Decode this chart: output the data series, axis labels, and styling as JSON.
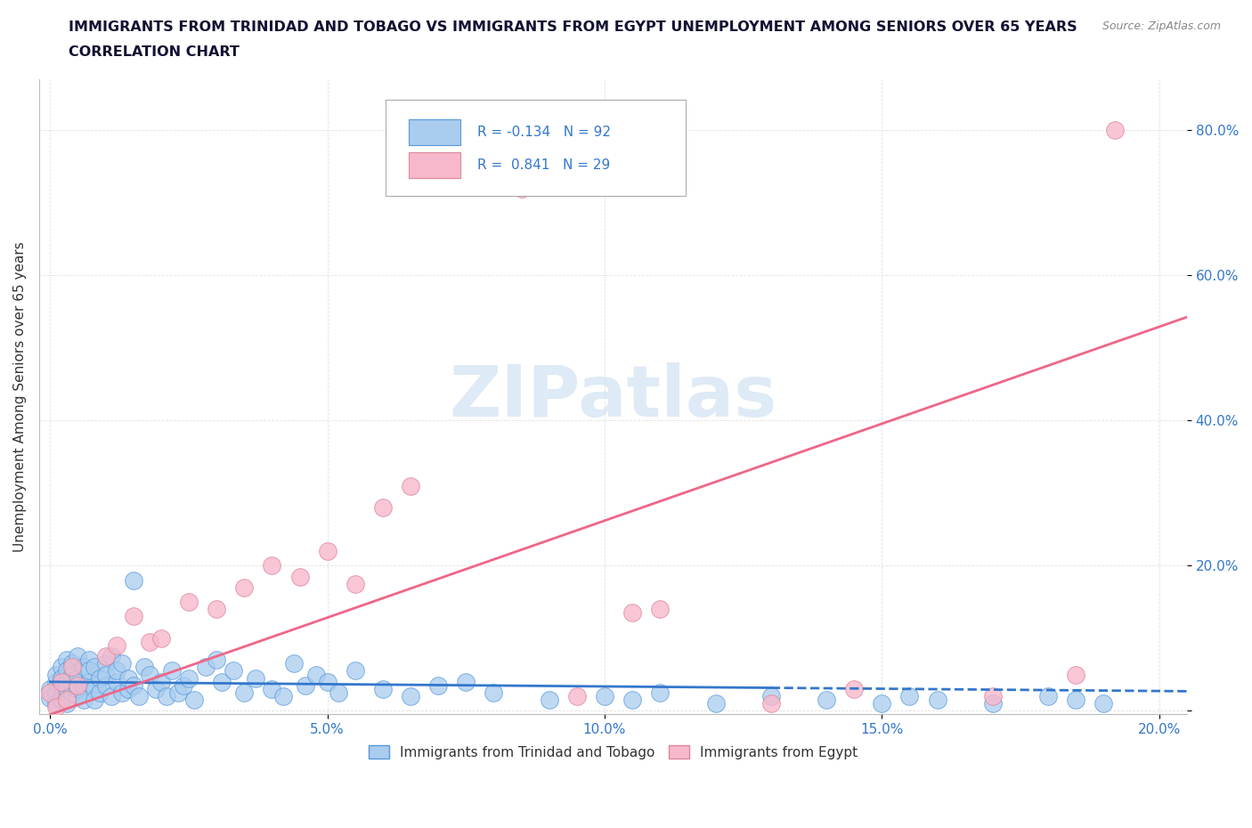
{
  "title_line1": "IMMIGRANTS FROM TRINIDAD AND TOBAGO VS IMMIGRANTS FROM EGYPT UNEMPLOYMENT AMONG SENIORS OVER 65 YEARS",
  "title_line2": "CORRELATION CHART",
  "source_text": "Source: ZipAtlas.com",
  "ylabel": "Unemployment Among Seniors over 65 years",
  "xlim": [
    -0.002,
    0.205
  ],
  "ylim": [
    -0.005,
    0.87
  ],
  "xticks": [
    0.0,
    0.05,
    0.1,
    0.15,
    0.2
  ],
  "xticklabels": [
    "0.0%",
    "5.0%",
    "10.0%",
    "15.0%",
    "20.0%"
  ],
  "yticks": [
    0.0,
    0.2,
    0.4,
    0.6,
    0.8
  ],
  "yticklabels": [
    "",
    "20.0%",
    "40.0%",
    "60.0%",
    "80.0%"
  ],
  "blue_color": "#aaccee",
  "blue_line_color": "#3377cc",
  "blue_edge_color": "#5599dd",
  "pink_color": "#f8b8cc",
  "pink_line_color": "#ee6688",
  "pink_edge_color": "#dd8899",
  "legend_blue_label": "R = -0.134   N = 92",
  "legend_pink_label": "R =  0.841   N = 29",
  "legend_label_tt": "Immigrants from Trinidad and Tobago",
  "legend_label_eg": "Immigrants from Egypt",
  "watermark": "ZIPatlas",
  "watermark_color": "#c8ddf0",
  "background_color": "#ffffff",
  "grid_color": "#dddddd",
  "title_color": "#111133",
  "axis_color": "#333333",
  "tick_color": "#3377cc"
}
